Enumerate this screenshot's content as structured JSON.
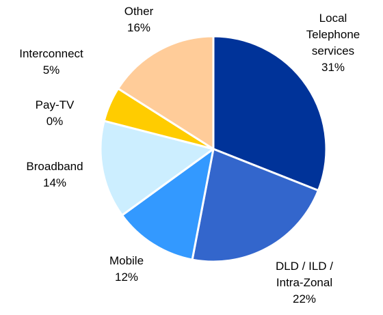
{
  "chart_data": {
    "type": "pie",
    "categories": [
      "Local Telephone services",
      "DLD / ILD / Intra-Zonal",
      "Mobile",
      "Broadband",
      "Pay-TV",
      "Interconnect",
      "Other"
    ],
    "values": [
      31,
      22,
      12,
      14,
      0,
      5,
      16
    ],
    "value_labels": [
      "31%",
      "22%",
      "12%",
      "14%",
      "0%",
      "5%",
      "16%"
    ],
    "colors": [
      "#003399",
      "#3366cc",
      "#3399ff",
      "#cceeff",
      "#ff9900",
      "#ffcc00",
      "#ffcc99"
    ]
  }
}
